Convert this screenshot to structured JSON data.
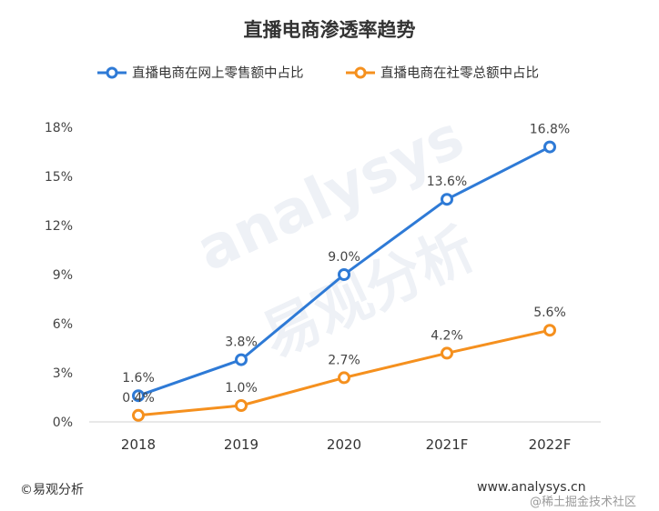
{
  "chart_data": {
    "type": "line",
    "title": "直播电商渗透率趋势",
    "categories": [
      "2018",
      "2019",
      "2020",
      "2021F",
      "2022F"
    ],
    "series": [
      {
        "name": "直播电商在网上零售额中占比",
        "color": "#2e7ad6",
        "values": [
          1.6,
          3.8,
          9.0,
          13.6,
          16.8
        ],
        "labels": [
          "1.6%",
          "3.8%",
          "9.0%",
          "13.6%",
          "16.8%"
        ]
      },
      {
        "name": "直播电商在社零总额中占比",
        "color": "#f5901e",
        "values": [
          0.4,
          1.0,
          2.7,
          4.2,
          5.6
        ],
        "labels": [
          "0.4%",
          "1.0%",
          "2.7%",
          "4.2%",
          "5.6%"
        ]
      }
    ],
    "yticks": [
      "0%",
      "3%",
      "6%",
      "9%",
      "12%",
      "15%",
      "18%"
    ],
    "ylim": [
      0,
      18
    ],
    "grid": false,
    "legend_position": "top"
  },
  "watermark": {
    "en": "analysys",
    "cn": "易观分析"
  },
  "footer": {
    "source": "©易观分析",
    "website": "www.analysys.cn",
    "overlay": "@稀土掘金技术社区"
  }
}
